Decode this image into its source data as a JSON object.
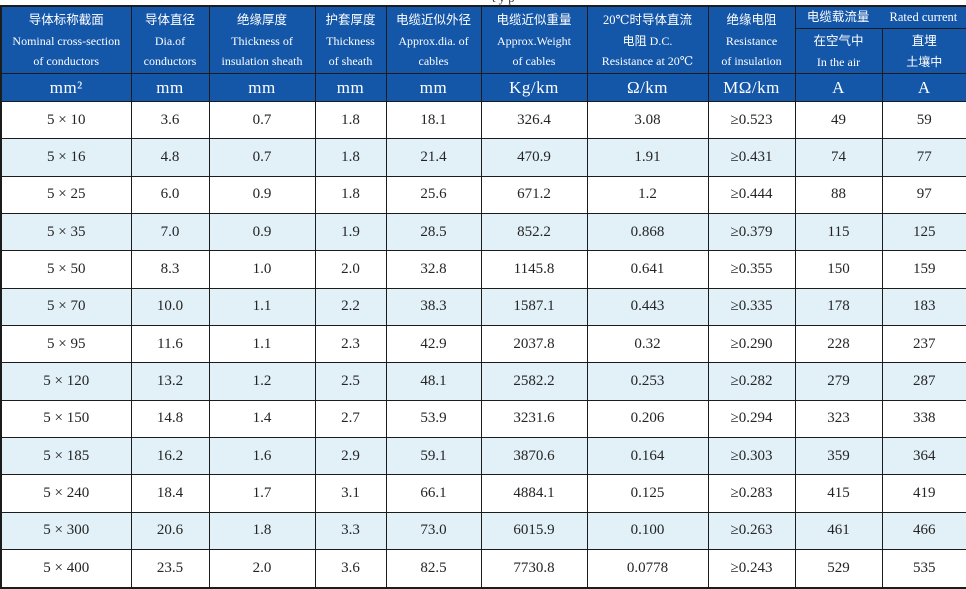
{
  "page": {
    "clipped_fragment": "typ"
  },
  "colors": {
    "header_bg": "#1456a8",
    "row_alt_bg": "#e2f0f8",
    "grid_line": "#1c1c1c",
    "header_text": "#ffffff",
    "body_text": "#242424"
  },
  "table": {
    "header": {
      "columns": [
        {
          "lines": [
            "导体标称截面",
            "Nominal cross-section",
            "of conductors"
          ]
        },
        {
          "lines": [
            "导体直径",
            "Dia.of",
            "conductors"
          ]
        },
        {
          "lines": [
            "绝缘厚度",
            "Thickness of",
            "insulation sheath"
          ]
        },
        {
          "lines": [
            "护套厚度",
            "Thickness",
            "of sheath"
          ]
        },
        {
          "lines": [
            "电缆近似外径",
            "Approx.dia. of",
            "cables"
          ]
        },
        {
          "lines": [
            "电缆近似重量",
            "Approx.Weight",
            "of cables"
          ]
        },
        {
          "lines": [
            "20℃时导体直流",
            "电阻 D.C.",
            "Resistance at 20℃"
          ]
        },
        {
          "lines": [
            "绝缘电阻",
            "Resistance",
            "of insulation"
          ]
        }
      ],
      "current_group": {
        "zh": "电缆载流量",
        "en": "Rated current",
        "sub_air": {
          "lines": [
            "在空气中",
            "In the air"
          ]
        },
        "sub_buried": {
          "lines": [
            "直埋",
            "土壤中"
          ]
        }
      },
      "units": [
        "mm²",
        "mm",
        "mm",
        "mm",
        "mm",
        "Kg/km",
        "Ω/km",
        "MΩ/km",
        "A",
        "A"
      ]
    },
    "rows": [
      [
        "5 × 10",
        "3.6",
        "0.7",
        "1.8",
        "18.1",
        "326.4",
        "3.08",
        "≥0.523",
        "49",
        "59"
      ],
      [
        "5 × 16",
        "4.8",
        "0.7",
        "1.8",
        "21.4",
        "470.9",
        "1.91",
        "≥0.431",
        "74",
        "77"
      ],
      [
        "5 × 25",
        "6.0",
        "0.9",
        "1.8",
        "25.6",
        "671.2",
        "1.2",
        "≥0.444",
        "88",
        "97"
      ],
      [
        "5 × 35",
        "7.0",
        "0.9",
        "1.9",
        "28.5",
        "852.2",
        "0.868",
        "≥0.379",
        "115",
        "125"
      ],
      [
        "5 × 50",
        "8.3",
        "1.0",
        "2.0",
        "32.8",
        "1145.8",
        "0.641",
        "≥0.355",
        "150",
        "159"
      ],
      [
        "5 × 70",
        "10.0",
        "1.1",
        "2.2",
        "38.3",
        "1587.1",
        "0.443",
        "≥0.335",
        "178",
        "183"
      ],
      [
        "5 × 95",
        "11.6",
        "1.1",
        "2.3",
        "42.9",
        "2037.8",
        "0.32",
        "≥0.290",
        "228",
        "237"
      ],
      [
        "5 × 120",
        "13.2",
        "1.2",
        "2.5",
        "48.1",
        "2582.2",
        "0.253",
        "≥0.282",
        "279",
        "287"
      ],
      [
        "5 × 150",
        "14.8",
        "1.4",
        "2.7",
        "53.9",
        "3231.6",
        "0.206",
        "≥0.294",
        "323",
        "338"
      ],
      [
        "5 × 185",
        "16.2",
        "1.6",
        "2.9",
        "59.1",
        "3870.6",
        "0.164",
        "≥0.303",
        "359",
        "364"
      ],
      [
        "5 × 240",
        "18.4",
        "1.7",
        "3.1",
        "66.1",
        "4884.1",
        "0.125",
        "≥0.283",
        "415",
        "419"
      ],
      [
        "5 × 300",
        "20.6",
        "1.8",
        "3.3",
        "73.0",
        "6015.9",
        "0.100",
        "≥0.263",
        "461",
        "466"
      ],
      [
        "5 × 400",
        "23.5",
        "2.0",
        "3.6",
        "82.5",
        "7730.8",
        "0.0778",
        "≥0.243",
        "529",
        "535"
      ]
    ]
  }
}
